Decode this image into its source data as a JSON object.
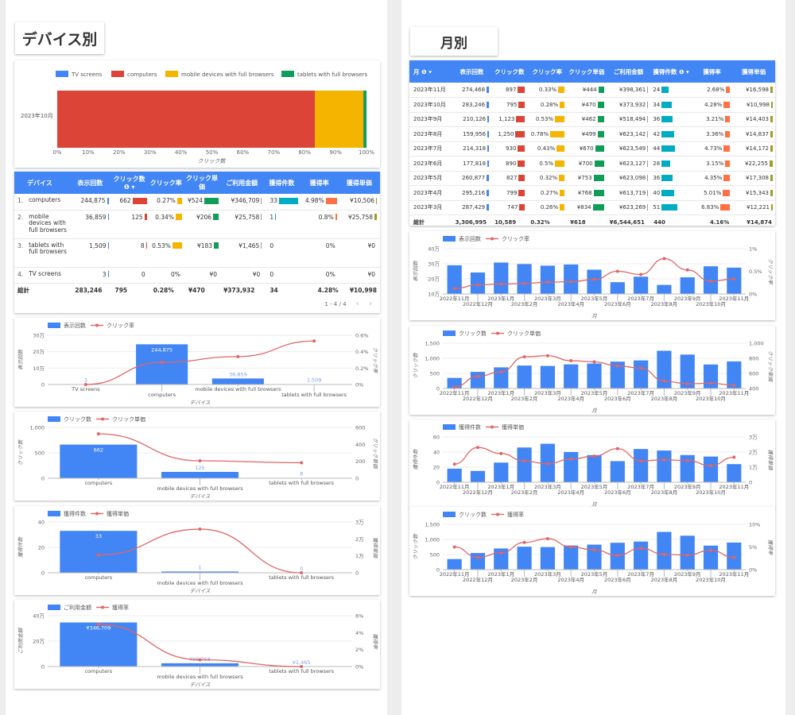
{
  "sections": {
    "left_title": "デバイス別",
    "right_title": "月別"
  },
  "colors": {
    "blue": "#4285f4",
    "red": "#db4437",
    "yellow": "#f4b400",
    "green": "#0f9d58",
    "teal": "#00acc1",
    "orange": "#ff7043",
    "olive": "#9e9d24",
    "line": "#e06666"
  },
  "stack_chart": {
    "legend": [
      "TV screens",
      "computers",
      "mobile devices with full browsers",
      "tablets with full browsers"
    ],
    "category": "2023年10月",
    "xlabel": "クリック数",
    "ticks": [
      "0%",
      "10%",
      "20%",
      "30%",
      "40%",
      "50%",
      "60%",
      "70%",
      "80%",
      "90%",
      "100%"
    ]
  },
  "device_table": {
    "headers": [
      "デバイス",
      "表示回数",
      "クリック数 ❶ ▾",
      "クリック率",
      "クリック単価",
      "ご利用金額",
      "獲得件数",
      "獲得率",
      "獲得単価"
    ],
    "rows": [
      {
        "idx": "1.",
        "name": "computers",
        "imp": "244,875",
        "clk": "662",
        "ctr": "0.27%",
        "cpc": "¥524",
        "cost": "¥346,709",
        "cv": "33",
        "cvr": "4.98%",
        "cpa": "¥10,506"
      },
      {
        "idx": "2.",
        "name": "mobile devices with full browsers",
        "imp": "36,859",
        "clk": "125",
        "ctr": "0.34%",
        "cpc": "¥206",
        "cost": "¥25,758",
        "cv": "1",
        "cvr": "0.8%",
        "cpa": "¥25,758"
      },
      {
        "idx": "3.",
        "name": "tablets with full browsers",
        "imp": "1,509",
        "clk": "8",
        "ctr": "0.53%",
        "cpc": "¥183",
        "cost": "¥1,465",
        "cv": "0",
        "cvr": "0%",
        "cpa": "¥0"
      },
      {
        "idx": "4.",
        "name": "TV screens",
        "imp": "3",
        "clk": "0",
        "ctr": "0%",
        "cpc": "¥0",
        "cost": "¥0",
        "cv": "0",
        "cvr": "0%",
        "cpa": "¥0"
      }
    ],
    "total": {
      "label": "総計",
      "imp": "283,246",
      "clk": "795",
      "ctr": "0.28%",
      "cpc": "¥470",
      "cost": "¥373,932",
      "cv": "34",
      "cvr": "4.28%",
      "cpa": "¥10,998"
    },
    "pager": "1 - 4 / 4"
  },
  "month_table": {
    "headers": [
      "月 ❶ ▾",
      "表示回数",
      "クリック数",
      "クリック率",
      "クリック単価",
      "ご利用金額",
      "獲得件数 ❶ ▾",
      "獲得率",
      "獲得単価"
    ],
    "rows": [
      [
        "2023年11月",
        "274,468",
        "897",
        "0.33%",
        "¥444",
        "¥398,361",
        "24",
        "2.68%",
        "¥16,598"
      ],
      [
        "2023年10月",
        "283,246",
        "795",
        "0.28%",
        "¥470",
        "¥373,932",
        "34",
        "4.28%",
        "¥10,998"
      ],
      [
        "2023年9月",
        "210,126",
        "1,123",
        "0.53%",
        "¥462",
        "¥518,494",
        "36",
        "3.21%",
        "¥14,403"
      ],
      [
        "2023年8月",
        "159,956",
        "1,250",
        "0.78%",
        "¥499",
        "¥623,142",
        "42",
        "3.36%",
        "¥14,837"
      ],
      [
        "2023年7月",
        "214,318",
        "930",
        "0.43%",
        "¥670",
        "¥623,549",
        "44",
        "4.73%",
        "¥14,172"
      ],
      [
        "2023年6月",
        "177,818",
        "890",
        "0.5%",
        "¥700",
        "¥623,127",
        "28",
        "3.15%",
        "¥22,255"
      ],
      [
        "2023年5月",
        "260,877",
        "827",
        "0.32%",
        "¥753",
        "¥623,098",
        "36",
        "4.35%",
        "¥17,308"
      ],
      [
        "2023年4月",
        "295,216",
        "799",
        "0.27%",
        "¥768",
        "¥613,719",
        "40",
        "5.01%",
        "¥15,343"
      ],
      [
        "2023年3月",
        "287,429",
        "747",
        "0.26%",
        "¥834",
        "¥623,269",
        "51",
        "6.83%",
        "¥12,221"
      ]
    ],
    "total": [
      "総計",
      "3,306,995",
      "10,589",
      "0.32%",
      "¥618",
      "¥6,544,651",
      "440",
      "4.16%",
      "¥14,874"
    ]
  },
  "chart_data": [
    {
      "type": "bar",
      "title": "",
      "stacked": true,
      "horizontal": true,
      "categories": [
        "2023年10月"
      ],
      "series": [
        {
          "name": "TV screens",
          "values": [
            0
          ]
        },
        {
          "name": "computers",
          "values": [
            83.3
          ]
        },
        {
          "name": "mobile devices with full browsers",
          "values": [
            15.7
          ]
        },
        {
          "name": "tablets with full browsers",
          "values": [
            1.0
          ]
        }
      ],
      "xlabel": "クリック数",
      "xlim": [
        0,
        100
      ]
    },
    {
      "type": "bar",
      "xlabel": "デバイス",
      "ylabel": "表示回数",
      "y2label": "クリック率",
      "categories": [
        "TV screens",
        "computers",
        "mobile devices with full browsers",
        "tablets with full browsers"
      ],
      "bar": {
        "name": "表示回数",
        "values": [
          3,
          244875,
          36859,
          1509
        ],
        "labels": [
          "3",
          "244,875",
          "36,859",
          "1,509"
        ],
        "max": 300000,
        "ticks": [
          "0",
          "10万",
          "20万",
          "30万"
        ]
      },
      "line": {
        "name": "クリック率",
        "values": [
          0,
          0.27,
          0.34,
          0.53
        ],
        "max": 0.6,
        "ticks": [
          "0%",
          "0.2%",
          "0.4%",
          "0.6%"
        ]
      }
    },
    {
      "type": "bar",
      "xlabel": "デバイス",
      "ylabel": "クリック数",
      "y2label": "クリック単価",
      "categories": [
        "computers",
        "mobile devices with full browsers",
        "tablets with full browsers"
      ],
      "bar": {
        "name": "クリック数",
        "values": [
          662,
          125,
          8
        ],
        "labels": [
          "662",
          "125",
          "8"
        ],
        "max": 1000,
        "ticks": [
          "0",
          "500",
          "1,000"
        ]
      },
      "line": {
        "name": "クリック単価",
        "values": [
          524,
          206,
          183
        ],
        "max": 600,
        "ticks": [
          "0",
          "200",
          "400",
          "600"
        ]
      }
    },
    {
      "type": "bar",
      "xlabel": "デバイス",
      "ylabel": "獲得件数",
      "y2label": "獲得単価",
      "categories": [
        "computers",
        "mobile devices with full browsers",
        "tablets with full browsers"
      ],
      "bar": {
        "name": "獲得件数",
        "values": [
          33,
          1,
          0
        ],
        "labels": [
          "33",
          "1",
          "0"
        ],
        "max": 40,
        "ticks": [
          "0",
          "20",
          "40"
        ]
      },
      "line": {
        "name": "獲得単価",
        "values": [
          10506,
          25758,
          0
        ],
        "max": 30000,
        "ticks": [
          "0",
          "1万",
          "2万",
          "3万"
        ]
      }
    },
    {
      "type": "bar",
      "xlabel": "デバイス",
      "ylabel": "ご利用金額",
      "y2label": "獲得率",
      "categories": [
        "computers",
        "mobile devices with full browsers",
        "tablets with full browsers"
      ],
      "bar": {
        "name": "ご利用金額",
        "values": [
          346709,
          25758,
          1465
        ],
        "labels": [
          "¥346,709",
          "¥25,758",
          "¥1,465"
        ],
        "max": 400000,
        "ticks": [
          "0",
          "20万",
          "40万"
        ]
      },
      "line": {
        "name": "獲得率",
        "values": [
          4.98,
          0.8,
          0
        ],
        "max": 6,
        "ticks": [
          "0%",
          "2%",
          "4%",
          "6%"
        ]
      }
    },
    {
      "type": "bar",
      "xlabel": "月",
      "ylabel": "表示回数",
      "y2label": "クリック率",
      "categories": [
        "2022年11月",
        "2022年12月",
        "2023年1月",
        "2023年2月",
        "2023年3月",
        "2023年4月",
        "2023年5月",
        "2023年6月",
        "2023年7月",
        "2023年8月",
        "2023年9月",
        "2023年10月",
        "2023年11月"
      ],
      "bar": {
        "name": "表示回数",
        "values": [
          290000,
          242000,
          308000,
          298000,
          287429,
          295216,
          260877,
          177818,
          214318,
          159956,
          210126,
          283246,
          274468
        ],
        "min": 100000,
        "max": 400000,
        "ticks": [
          "10万",
          "20万",
          "30万",
          "40万"
        ]
      },
      "line": {
        "name": "クリック率",
        "values": [
          0.12,
          0.2,
          0.22,
          0.23,
          0.26,
          0.27,
          0.32,
          0.5,
          0.43,
          0.78,
          0.53,
          0.28,
          0.33
        ],
        "max": 1,
        "ticks": [
          "0%",
          "0.5%",
          "1%"
        ]
      }
    },
    {
      "type": "bar",
      "xlabel": "月",
      "ylabel": "クリック数",
      "y2label": "クリック単価",
      "categories": [
        "2022年11月",
        "2022年12月",
        "2023年1月",
        "2023年2月",
        "2023年3月",
        "2023年4月",
        "2023年5月",
        "2023年6月",
        "2023年7月",
        "2023年8月",
        "2023年9月",
        "2023年10月",
        "2023年11月"
      ],
      "bar": {
        "name": "クリック数",
        "values": [
          350,
          550,
          700,
          760,
          747,
          799,
          827,
          890,
          930,
          1250,
          1123,
          795,
          897
        ],
        "max": 1500,
        "ticks": [
          "0",
          "500",
          "1,000",
          "1,500"
        ]
      },
      "line": {
        "name": "クリック単価",
        "values": [
          420,
          560,
          620,
          820,
          834,
          768,
          753,
          700,
          670,
          499,
          462,
          470,
          444
        ],
        "min": 400,
        "max": 1000,
        "ticks": [
          "400",
          "600",
          "800",
          "1,000"
        ]
      }
    },
    {
      "type": "bar",
      "xlabel": "月",
      "ylabel": "獲得件数",
      "y2label": "獲得単価",
      "categories": [
        "2022年11月",
        "2022年12月",
        "2023年1月",
        "2023年2月",
        "2023年3月",
        "2023年4月",
        "2023年5月",
        "2023年6月",
        "2023年7月",
        "2023年8月",
        "2023年9月",
        "2023年10月",
        "2023年11月"
      ],
      "bar": {
        "name": "獲得件数",
        "values": [
          18,
          15,
          26,
          46,
          51,
          40,
          36,
          28,
          44,
          42,
          36,
          34,
          24
        ],
        "max": 60,
        "ticks": [
          "0",
          "20",
          "40",
          "60"
        ]
      },
      "line": {
        "name": "獲得単価",
        "values": [
          12000,
          23000,
          19000,
          14000,
          12221,
          15343,
          17308,
          22255,
          14172,
          14837,
          14403,
          10998,
          16598
        ],
        "max": 30000,
        "ticks": [
          "0",
          "1万",
          "2万",
          "3万"
        ]
      }
    },
    {
      "type": "bar",
      "xlabel": "月",
      "ylabel": "クリック数",
      "y2label": "獲得率",
      "categories": [
        "2022年11月",
        "2022年12月",
        "2023年1月",
        "2023年2月",
        "2023年3月",
        "2023年4月",
        "2023年5月",
        "2023年6月",
        "2023年7月",
        "2023年8月",
        "2023年9月",
        "2023年10月",
        "2023年11月"
      ],
      "bar": {
        "name": "クリック数",
        "values": [
          350,
          550,
          700,
          760,
          747,
          799,
          827,
          890,
          930,
          1250,
          1123,
          795,
          897
        ],
        "max": 1500,
        "ticks": [
          "0",
          "500",
          "1,000",
          "1,500"
        ]
      },
      "line": {
        "name": "獲得率",
        "values": [
          5.0,
          2.7,
          3.7,
          6.0,
          6.83,
          5.01,
          4.35,
          3.15,
          4.73,
          3.36,
          3.21,
          4.28,
          2.68
        ],
        "max": 10,
        "ticks": [
          "0%",
          "5%",
          "10%"
        ]
      }
    }
  ]
}
